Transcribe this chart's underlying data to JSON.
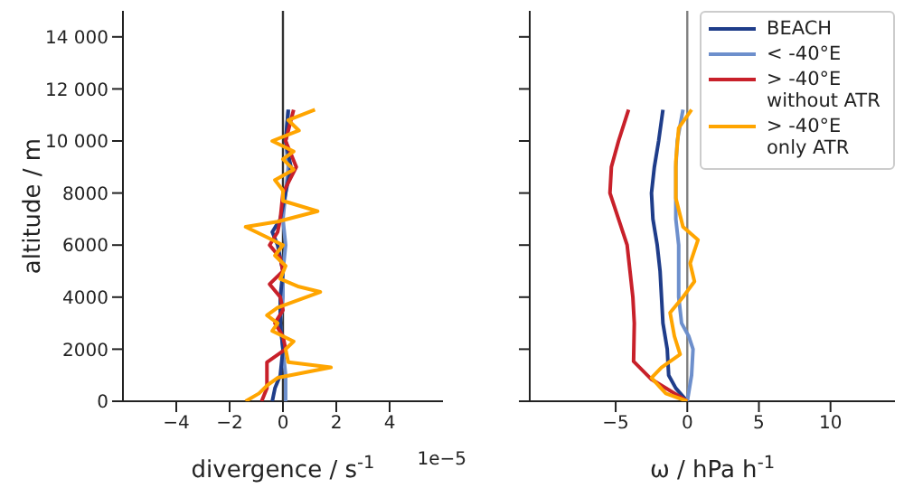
{
  "chart_data": [
    {
      "type": "line",
      "xlabel": "divergence / s$^{-1}$",
      "ylabel": "altitude / m",
      "annotations": [
        "1e−5"
      ],
      "xlim": [
        -6,
        6
      ],
      "xticks": [
        {
          "value": -4,
          "label": "−4"
        },
        {
          "value": -2,
          "label": "−2"
        },
        0,
        2,
        4
      ],
      "ylim": [
        0,
        15000
      ],
      "yticks": [
        0,
        2000,
        4000,
        6000,
        8000,
        {
          "value": 10000,
          "label": "10 000"
        },
        {
          "value": 12000,
          "label": "12 000"
        },
        {
          "value": 14000,
          "label": "14 000"
        }
      ],
      "grid": false,
      "legend": false,
      "ref_lines": [
        {
          "axis": "x",
          "value": 0,
          "color": "#333333"
        }
      ],
      "series": [
        {
          "color": "#6d8fcc",
          "x": [
            0.1,
            0.1,
            0,
            -0.1,
            0,
            0,
            0.1,
            0,
            0.1,
            0.2,
            0.1,
            0.2
          ],
          "values": [
            0,
            1000,
            2000,
            3000,
            4000,
            5000,
            6000,
            7000,
            8000,
            9000,
            10000,
            11200
          ]
        },
        {
          "color": "#1f3d8a",
          "x": [
            -0.4,
            -0.3,
            -0.1,
            0,
            -0.1,
            -0.1,
            0,
            -0.2,
            -0.4,
            -0.1,
            0.1,
            0.3,
            0.1,
            0.2
          ],
          "values": [
            0,
            500,
            1000,
            2000,
            3000,
            4000,
            5000,
            6000,
            6500,
            7000,
            8000,
            9000,
            10000,
            11200
          ]
        },
        {
          "color": "#c8202a",
          "x": [
            -0.8,
            -0.6,
            -0.6,
            -0.6,
            0.1,
            0,
            -0.3,
            0,
            -0.1,
            -0.5,
            0,
            -0.1,
            -0.5,
            -0.2,
            -0.1,
            0,
            0.5,
            0.1,
            0.4
          ],
          "values": [
            0,
            500,
            1000,
            1500,
            2000,
            2500,
            3000,
            3500,
            4000,
            4500,
            5000,
            5500,
            6000,
            6500,
            7000,
            8000,
            9000,
            10000,
            11200
          ]
        },
        {
          "color": "#ffa500",
          "x": [
            -1.4,
            -0.9,
            -0.6,
            -0.2,
            1.8,
            0.2,
            0.1,
            0.4,
            -0.4,
            -0.2,
            -0.6,
            -0.2,
            1.4,
            0.6,
            -0.1,
            0.1,
            -0.3,
            0,
            -0.6,
            -1.4,
            -0.2,
            1.3,
            0,
            0,
            -0.3,
            0.4,
            0,
            0.4,
            -0.4,
            0.6,
            0.2,
            1.2
          ],
          "values": [
            0,
            300,
            600,
            900,
            1300,
            1500,
            2000,
            2300,
            2700,
            3000,
            3300,
            3600,
            4200,
            4400,
            4700,
            5200,
            5600,
            6000,
            6300,
            6700,
            6900,
            7300,
            7700,
            8100,
            8500,
            8900,
            9300,
            9600,
            10000,
            10400,
            10800,
            11200
          ]
        }
      ]
    },
    {
      "type": "line",
      "xlabel": "ω / hPa h$^{-1}$",
      "xlim": [
        -11,
        14.5
      ],
      "xticks": [
        {
          "value": -5,
          "label": "−5"
        },
        0,
        5,
        10
      ],
      "ylim": [
        0,
        15000
      ],
      "yticks": [
        0,
        2000,
        4000,
        6000,
        8000,
        10000,
        12000,
        14000
      ],
      "tick_labels": "x",
      "grid": false,
      "legend": "top right",
      "ref_lines": [
        {
          "axis": "x",
          "value": 0,
          "color": "#808080"
        }
      ],
      "series": [
        {
          "name": "BEACH",
          "color": "#1f3d8a",
          "x": [
            0,
            -0.8,
            -1.3,
            -1.4,
            -1.7,
            -1.8,
            -1.9,
            -2.1,
            -2.4,
            -2.5,
            -2.3,
            -2.0,
            -1.7
          ],
          "values": [
            0,
            500,
            1000,
            2000,
            3000,
            4000,
            5000,
            6000,
            7000,
            8000,
            9000,
            10000,
            11200
          ]
        },
        {
          "name": "< -40°E",
          "color": "#6d8fcc",
          "x": [
            0,
            0.3,
            0.4,
            0.1,
            -0.4,
            -0.6,
            -0.6,
            -0.6,
            -0.8,
            -0.8,
            -0.8,
            -0.7,
            -0.3
          ],
          "values": [
            0,
            1000,
            2000,
            2500,
            3000,
            4000,
            5000,
            6000,
            7000,
            8000,
            9000,
            10000,
            11200
          ]
        },
        {
          "name": "> -40°E without ATR",
          "color": "#c8202a",
          "x": [
            0,
            -2.5,
            -3.75,
            -3.7,
            -3.8,
            -4.0,
            -4.2,
            -4.8,
            -5.4,
            -5.3,
            -4.8,
            -4.1
          ],
          "values": [
            0,
            840,
            1530,
            3000,
            4000,
            5000,
            6000,
            7000,
            8000,
            9000,
            10000,
            11200
          ]
        },
        {
          "name": "> -40°E only ATR",
          "color": "#ffa500",
          "x": [
            0,
            -1.5,
            -2.5,
            -1.8,
            -0.5,
            -0.9,
            -1.2,
            -0.3,
            0.5,
            0.2,
            0.75,
            -0.3,
            -0.8,
            -0.8,
            -0.6,
            0.3
          ],
          "values": [
            0,
            300,
            900,
            1300,
            1800,
            2500,
            3400,
            4000,
            4600,
            5300,
            6200,
            6700,
            7800,
            9200,
            10500,
            11200
          ]
        }
      ]
    }
  ]
}
